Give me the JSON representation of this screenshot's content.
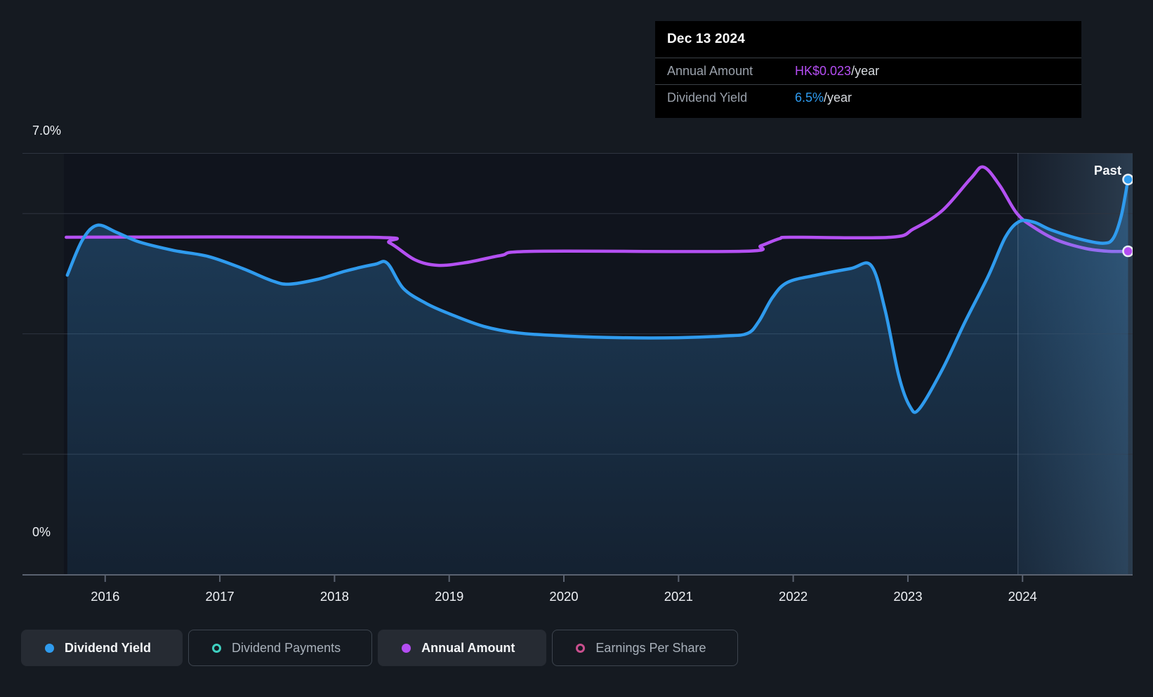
{
  "tooltip": {
    "date": "Dec 13 2024",
    "rows": [
      {
        "label": "Annual Amount",
        "value": "HK$0.023",
        "suffix": "/year",
        "color": "#b44df2"
      },
      {
        "label": "Dividend Yield",
        "value": "6.5%",
        "suffix": "/year",
        "color": "#2e9bf0"
      }
    ]
  },
  "legend": [
    {
      "label": "Dividend Yield",
      "marker": "dot",
      "color": "#2f9bee",
      "active": true
    },
    {
      "label": "Dividend Payments",
      "marker": "ring",
      "color": "#3ed0c0",
      "active": false
    },
    {
      "label": "Annual Amount",
      "marker": "dot",
      "color": "#b44df2",
      "active": true
    },
    {
      "label": "Earnings Per Share",
      "marker": "ring",
      "color": "#c94f8e",
      "active": false
    }
  ],
  "colors": {
    "page_bg": "#151a21",
    "plot_bg": "#10141d",
    "gridline": "#2e3440",
    "axis_line": "#5a6270",
    "tick_label": "#eef1f5",
    "dividend_yield_line": "#2f9bee",
    "annual_amount_line": "#b44df2",
    "annual_amount_line_right": "#8a74ee",
    "tooltip_bg": "#000000",
    "past_divider": "rgba(190,210,230,0.28)"
  },
  "chart_data": {
    "type": "line",
    "title": "Dividend history",
    "past_label": "Past",
    "x": {
      "min": 2015.64,
      "max": 2024.96,
      "ticks": [
        "2016",
        "2017",
        "2018",
        "2019",
        "2020",
        "2021",
        "2022",
        "2023",
        "2024"
      ],
      "tick_years": [
        2016,
        2017,
        2018,
        2019,
        2020,
        2021,
        2022,
        2023,
        2024
      ]
    },
    "y_left": {
      "unit": "%",
      "min": 0,
      "max": 7,
      "label_top": "7.0%",
      "label_bottom": "0%",
      "gridlines_pct": [
        7,
        6,
        4,
        2,
        0
      ]
    },
    "y_amount_axis": {
      "unit": "HK$",
      "min": 0,
      "max": 0.03
    },
    "past_region_start_year": 2023.96,
    "grid": true,
    "legend_position": "bottom",
    "series": [
      {
        "name": "Dividend Yield",
        "axis": "percent",
        "color": "#2f9bee",
        "area_fill": true,
        "end_marker": true,
        "points": [
          [
            2015.67,
            4.97
          ],
          [
            2015.8,
            5.55
          ],
          [
            2015.93,
            5.8
          ],
          [
            2016.1,
            5.68
          ],
          [
            2016.3,
            5.52
          ],
          [
            2016.6,
            5.38
          ],
          [
            2016.9,
            5.28
          ],
          [
            2017.2,
            5.08
          ],
          [
            2017.45,
            4.88
          ],
          [
            2017.6,
            4.82
          ],
          [
            2017.85,
            4.9
          ],
          [
            2018.1,
            5.04
          ],
          [
            2018.35,
            5.15
          ],
          [
            2018.46,
            5.17
          ],
          [
            2018.6,
            4.75
          ],
          [
            2018.8,
            4.5
          ],
          [
            2019.0,
            4.33
          ],
          [
            2019.3,
            4.12
          ],
          [
            2019.6,
            4.01
          ],
          [
            2020.0,
            3.96
          ],
          [
            2020.5,
            3.93
          ],
          [
            2021.0,
            3.93
          ],
          [
            2021.4,
            3.96
          ],
          [
            2021.6,
            4.0
          ],
          [
            2021.7,
            4.2
          ],
          [
            2021.82,
            4.6
          ],
          [
            2021.95,
            4.85
          ],
          [
            2022.2,
            4.97
          ],
          [
            2022.5,
            5.08
          ],
          [
            2022.68,
            5.13
          ],
          [
            2022.8,
            4.4
          ],
          [
            2022.92,
            3.3
          ],
          [
            2023.02,
            2.78
          ],
          [
            2023.1,
            2.75
          ],
          [
            2023.3,
            3.4
          ],
          [
            2023.5,
            4.2
          ],
          [
            2023.7,
            4.95
          ],
          [
            2023.85,
            5.6
          ],
          [
            2023.97,
            5.86
          ],
          [
            2024.1,
            5.85
          ],
          [
            2024.25,
            5.72
          ],
          [
            2024.5,
            5.57
          ],
          [
            2024.7,
            5.5
          ],
          [
            2024.79,
            5.58
          ],
          [
            2024.86,
            5.95
          ],
          [
            2024.92,
            6.56
          ]
        ]
      },
      {
        "name": "Annual Amount",
        "axis": "amount",
        "color": "#b44df2",
        "area_fill": false,
        "end_marker": true,
        "points": [
          [
            2015.66,
            0.024
          ],
          [
            2018.3,
            0.024
          ],
          [
            2018.48,
            0.0236
          ],
          [
            2018.7,
            0.0224
          ],
          [
            2018.9,
            0.022
          ],
          [
            2019.15,
            0.0222
          ],
          [
            2019.45,
            0.0227
          ],
          [
            2019.75,
            0.023
          ],
          [
            2021.55,
            0.023
          ],
          [
            2021.72,
            0.0234
          ],
          [
            2021.88,
            0.0239
          ],
          [
            2022.0,
            0.024
          ],
          [
            2022.85,
            0.024
          ],
          [
            2023.05,
            0.0246
          ],
          [
            2023.3,
            0.0259
          ],
          [
            2023.55,
            0.0282
          ],
          [
            2023.66,
            0.029
          ],
          [
            2023.8,
            0.0277
          ],
          [
            2023.95,
            0.0257
          ],
          [
            2024.1,
            0.0247
          ],
          [
            2024.3,
            0.0238
          ],
          [
            2024.55,
            0.0232
          ],
          [
            2024.75,
            0.023
          ],
          [
            2024.92,
            0.023
          ]
        ]
      }
    ]
  }
}
